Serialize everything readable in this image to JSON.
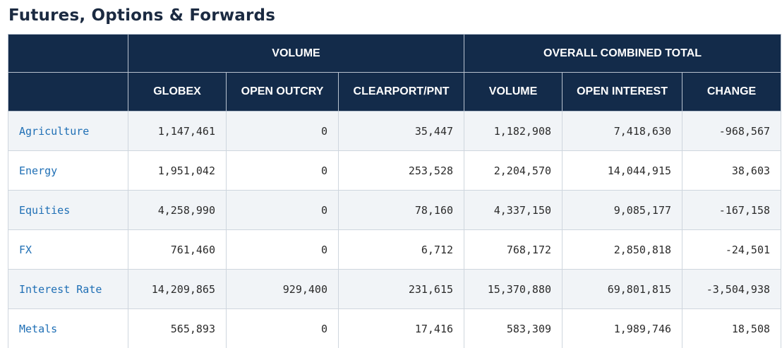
{
  "page": {
    "title": "Futures, Options & Forwards"
  },
  "table": {
    "groups": {
      "blank": "",
      "volume": "VOLUME",
      "overall": "OVERALL COMBINED TOTAL"
    },
    "columns": [
      "GLOBEX",
      "OPEN OUTCRY",
      "CLEARPORT/PNT",
      "VOLUME",
      "OPEN INTEREST",
      "CHANGE"
    ],
    "rows": [
      {
        "category": "Agriculture",
        "globex": "1,147,461",
        "open_outcry": "0",
        "clearport": "35,447",
        "volume": "1,182,908",
        "open_interest": "7,418,630",
        "change": "-968,567"
      },
      {
        "category": "Energy",
        "globex": "1,951,042",
        "open_outcry": "0",
        "clearport": "253,528",
        "volume": "2,204,570",
        "open_interest": "14,044,915",
        "change": "38,603"
      },
      {
        "category": "Equities",
        "globex": "4,258,990",
        "open_outcry": "0",
        "clearport": "78,160",
        "volume": "4,337,150",
        "open_interest": "9,085,177",
        "change": "-167,158"
      },
      {
        "category": "FX",
        "globex": "761,460",
        "open_outcry": "0",
        "clearport": "6,712",
        "volume": "768,172",
        "open_interest": "2,850,818",
        "change": "-24,501"
      },
      {
        "category": "Interest Rate",
        "globex": "14,209,865",
        "open_outcry": "929,400",
        "clearport": "231,615",
        "volume": "15,370,880",
        "open_interest": "69,801,815",
        "change": "-3,504,938"
      },
      {
        "category": "Metals",
        "globex": "565,893",
        "open_outcry": "0",
        "clearport": "17,416",
        "volume": "583,309",
        "open_interest": "1,989,746",
        "change": "18,508"
      }
    ]
  },
  "colors": {
    "header_bg": "#132b4a",
    "link": "#1f6fb5",
    "row_alt": "#f1f4f7"
  }
}
